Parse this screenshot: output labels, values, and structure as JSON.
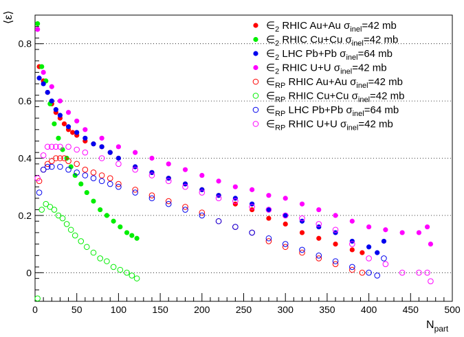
{
  "chart_data": {
    "type": "scatter",
    "title": "",
    "xlabel": "N",
    "xlabel_sub": "part",
    "ylabel": "⟨ε⟩",
    "xlim": [
      0,
      500
    ],
    "ylim": [
      -0.1,
      0.9
    ],
    "x_ticks": [
      0,
      50,
      100,
      150,
      200,
      250,
      300,
      350,
      400,
      450,
      500
    ],
    "y_ticks": [
      0,
      0.2,
      0.4,
      0.6,
      0.8
    ],
    "y_tick_labels": [
      "0",
      "0.2",
      "0.4",
      "0.6",
      "0.8"
    ],
    "grid": "horizontal dotted",
    "legend_position": "top-right",
    "series": [
      {
        "name": "ε2 RHIC Au+Au σinel=42 mb",
        "legend_parts": [
          "∈",
          "2",
          " RHIC Au+Au  σ",
          "inel",
          "=42 mb"
        ],
        "color": "#ff0000",
        "filled": true,
        "x": [
          5,
          10,
          15,
          20,
          25,
          30,
          35,
          40,
          45,
          50,
          60,
          70,
          80,
          90,
          100,
          120,
          140,
          160,
          180,
          200,
          220,
          240,
          260,
          280,
          300,
          320,
          340,
          360,
          380,
          392
        ],
        "y": [
          0.72,
          0.67,
          0.63,
          0.59,
          0.56,
          0.54,
          0.52,
          0.5,
          0.49,
          0.48,
          0.46,
          0.45,
          0.44,
          0.42,
          0.4,
          0.37,
          0.35,
          0.33,
          0.31,
          0.29,
          0.27,
          0.24,
          0.22,
          0.19,
          0.17,
          0.14,
          0.12,
          0.1,
          0.08,
          0.07
        ]
      },
      {
        "name": "ε2 RHIC Cu+Cu σinel=42 mb",
        "legend_parts": [
          "∈",
          "2",
          " RHIC Cu+Cu  σ",
          "inel",
          "=42 mb"
        ],
        "color": "#00ee00",
        "filled": true,
        "x": [
          3,
          8,
          13,
          18,
          23,
          28,
          33,
          38,
          43,
          48,
          55,
          62,
          70,
          78,
          86,
          94,
          102,
          110,
          116,
          122
        ],
        "y": [
          0.87,
          0.72,
          0.67,
          0.59,
          0.52,
          0.47,
          0.43,
          0.4,
          0.37,
          0.34,
          0.31,
          0.28,
          0.25,
          0.22,
          0.2,
          0.18,
          0.16,
          0.14,
          0.13,
          0.12
        ]
      },
      {
        "name": "ε2 LHC Pb+Pb σinel=64 mb",
        "legend_parts": [
          "∈",
          "2",
          " LHC Pb+Pb  σ",
          "inel",
          "=64 mb"
        ],
        "color": "#0000ee",
        "filled": true,
        "x": [
          5,
          10,
          15,
          20,
          25,
          30,
          40,
          50,
          60,
          70,
          80,
          90,
          100,
          120,
          140,
          160,
          180,
          200,
          220,
          240,
          260,
          280,
          300,
          320,
          340,
          360,
          380,
          400,
          410,
          418
        ],
        "y": [
          0.68,
          0.66,
          0.63,
          0.6,
          0.57,
          0.55,
          0.51,
          0.49,
          0.47,
          0.45,
          0.44,
          0.42,
          0.4,
          0.37,
          0.35,
          0.33,
          0.31,
          0.29,
          0.27,
          0.26,
          0.24,
          0.22,
          0.2,
          0.18,
          0.16,
          0.14,
          0.11,
          0.09,
          0.07,
          0.11
        ]
      },
      {
        "name": "ε2 RHIC U+U σinel=42 mb",
        "legend_parts": [
          "∈",
          "2",
          " RHIC U+U  σ",
          "inel",
          "=42 mb"
        ],
        "color": "#ff00ff",
        "filled": true,
        "x": [
          3,
          10,
          20,
          30,
          40,
          50,
          60,
          80,
          100,
          120,
          140,
          160,
          180,
          200,
          220,
          240,
          260,
          280,
          300,
          320,
          340,
          360,
          380,
          400,
          420,
          440,
          460,
          470,
          474
        ],
        "y": [
          0.85,
          0.7,
          0.65,
          0.6,
          0.56,
          0.53,
          0.5,
          0.47,
          0.44,
          0.42,
          0.4,
          0.38,
          0.36,
          0.34,
          0.32,
          0.3,
          0.29,
          0.27,
          0.26,
          0.24,
          0.22,
          0.2,
          0.18,
          0.16,
          0.15,
          0.14,
          0.14,
          0.16,
          0.1
        ]
      },
      {
        "name": "εRP RHIC Au+Au σinel=42 mb",
        "legend_parts": [
          "∈",
          "RP",
          " RHIC Au+Au  σ",
          "inel",
          "=42 mb"
        ],
        "color": "#ff0000",
        "filled": false,
        "x": [
          5,
          10,
          15,
          20,
          25,
          30,
          35,
          40,
          50,
          60,
          70,
          80,
          90,
          100,
          120,
          140,
          160,
          180,
          200,
          220,
          240,
          260,
          280,
          300,
          320,
          340,
          360,
          380,
          392
        ],
        "y": [
          0.32,
          0.36,
          0.38,
          0.39,
          0.4,
          0.4,
          0.4,
          0.39,
          0.38,
          0.36,
          0.35,
          0.34,
          0.33,
          0.31,
          0.29,
          0.27,
          0.25,
          0.23,
          0.21,
          0.18,
          0.16,
          0.14,
          0.11,
          0.09,
          0.07,
          0.05,
          0.03,
          0.01,
          0.0
        ]
      },
      {
        "name": "εRP RHIC Cu+Cu σinel=42 mb",
        "legend_parts": [
          "∈",
          "RP",
          " RHIC Cu+Cu  σ",
          "inel",
          "=42 mb"
        ],
        "color": "#00ee00",
        "filled": false,
        "x": [
          3,
          8,
          13,
          18,
          23,
          28,
          33,
          38,
          43,
          48,
          55,
          62,
          70,
          78,
          86,
          94,
          102,
          110,
          116,
          122
        ],
        "y": [
          -0.09,
          0.22,
          0.24,
          0.23,
          0.22,
          0.2,
          0.19,
          0.17,
          0.15,
          0.13,
          0.11,
          0.09,
          0.07,
          0.05,
          0.04,
          0.02,
          0.01,
          0.0,
          -0.01,
          -0.02
        ]
      },
      {
        "name": "εRP LHC Pb+Pb σinel=64 mb",
        "legend_parts": [
          "∈",
          "RP",
          " LHC Pb+Pb  σ",
          "inel",
          "=64 mb"
        ],
        "color": "#0000ee",
        "filled": false,
        "x": [
          5,
          10,
          15,
          20,
          30,
          40,
          50,
          60,
          70,
          80,
          90,
          100,
          120,
          140,
          160,
          180,
          200,
          220,
          240,
          260,
          280,
          300,
          320,
          340,
          360,
          380,
          400,
          410,
          418
        ],
        "y": [
          0.28,
          0.36,
          0.37,
          0.37,
          0.37,
          0.36,
          0.35,
          0.34,
          0.33,
          0.32,
          0.31,
          0.3,
          0.28,
          0.26,
          0.24,
          0.22,
          0.2,
          0.18,
          0.16,
          0.14,
          0.12,
          0.1,
          0.08,
          0.06,
          0.04,
          0.02,
          0.0,
          -0.01,
          0.05
        ]
      },
      {
        "name": "εRP RHIC U+U σinel=42 mb",
        "legend_parts": [
          "∈",
          "RP",
          " RHIC U+U  σ",
          "inel",
          "=42 mb"
        ],
        "color": "#ff00ff",
        "filled": false,
        "x": [
          3,
          10,
          15,
          20,
          25,
          30,
          40,
          50,
          60,
          80,
          100,
          120,
          140,
          160,
          180,
          200,
          220,
          240,
          260,
          280,
          300,
          320,
          340,
          360,
          380,
          400,
          420,
          440,
          460,
          470,
          474
        ],
        "y": [
          0.33,
          0.41,
          0.44,
          0.44,
          0.44,
          0.44,
          0.44,
          0.43,
          0.42,
          0.4,
          0.38,
          0.36,
          0.34,
          0.32,
          0.3,
          0.28,
          0.26,
          0.25,
          0.23,
          0.22,
          0.2,
          0.19,
          0.17,
          0.15,
          0.1,
          0.05,
          0.03,
          0.0,
          0.0,
          0.0,
          -0.03
        ]
      }
    ]
  }
}
